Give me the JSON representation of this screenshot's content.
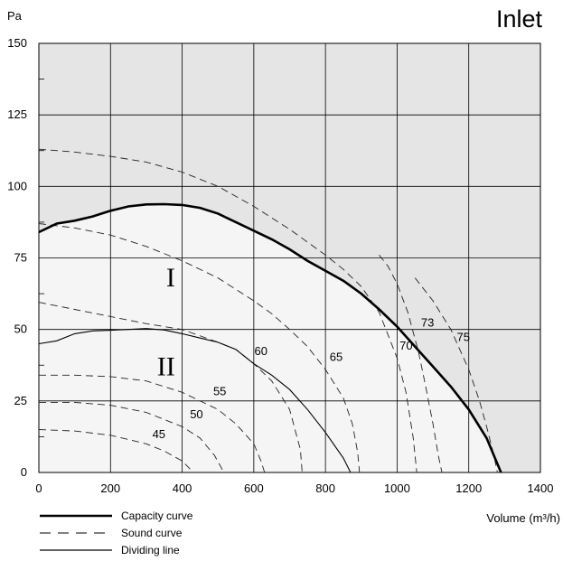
{
  "chart_data": {
    "type": "line",
    "title": "Inlet",
    "ylabel": "Pa",
    "xlabel": "Volume (m³/h)",
    "xlim": [
      0,
      1400
    ],
    "ylim": [
      0,
      150
    ],
    "x_ticks": [
      0,
      200,
      400,
      600,
      800,
      1000,
      1200,
      1400
    ],
    "y_ticks": [
      0,
      25,
      50,
      75,
      100,
      125,
      150
    ],
    "grid": true,
    "colors": {
      "background": "#ffffff",
      "above_capacity": "#e5e5e5",
      "below_capacity": "#f5f5f5",
      "line": "#000000",
      "grid": "#000000"
    },
    "capacity_curve": {
      "name": "Capacity curve",
      "x": [
        0,
        50,
        100,
        150,
        200,
        250,
        300,
        350,
        400,
        450,
        500,
        550,
        600,
        650,
        700,
        750,
        800,
        850,
        900,
        950,
        1000,
        1050,
        1100,
        1150,
        1200,
        1250,
        1290
      ],
      "y": [
        84,
        87,
        88,
        89.5,
        91.5,
        93,
        93.7,
        93.8,
        93.5,
        92.5,
        90.5,
        87.5,
        84.5,
        81.5,
        78,
        74,
        70.5,
        67,
        62.5,
        57,
        51,
        44,
        37,
        30,
        22,
        12,
        0
      ]
    },
    "dividing_line": {
      "name": "Dividing line",
      "x": [
        0,
        50,
        100,
        150,
        200,
        250,
        300,
        350,
        400,
        450,
        500,
        550,
        600,
        650,
        700,
        750,
        800,
        850,
        870
      ],
      "y": [
        45,
        46,
        48.5,
        49.5,
        49.7,
        50,
        50.3,
        49.8,
        48.5,
        47,
        45.5,
        43,
        38,
        34,
        29,
        22,
        14,
        5,
        0
      ]
    },
    "sound_curves": [
      {
        "label": "45",
        "x": [
          0,
          100,
          200,
          300,
          350,
          400,
          420,
          430
        ],
        "y": [
          15,
          14.5,
          13,
          10,
          7.5,
          4,
          1.5,
          0
        ]
      },
      {
        "label": "50",
        "x": [
          0,
          100,
          200,
          300,
          400,
          450,
          490,
          510,
          515
        ],
        "y": [
          24.5,
          24.5,
          23.5,
          21,
          16,
          12,
          6,
          1.5,
          0
        ]
      },
      {
        "label": "55",
        "x": [
          0,
          100,
          200,
          300,
          400,
          500,
          550,
          600,
          620,
          630
        ],
        "y": [
          34,
          34,
          33.5,
          32,
          28,
          22,
          17,
          10,
          4,
          0
        ]
      },
      {
        "label": "60",
        "x": [
          0,
          100,
          200,
          300,
          400,
          500,
          550,
          600,
          650,
          700,
          730,
          735
        ],
        "y": [
          59.5,
          57,
          54.5,
          52,
          50,
          45.5,
          43,
          38,
          32,
          22,
          8,
          0
        ]
      },
      {
        "label": "65",
        "x": [
          0,
          100,
          200,
          300,
          400,
          500,
          600,
          650,
          700,
          750,
          800,
          850,
          875,
          890,
          895
        ],
        "y": [
          87,
          85.5,
          83,
          79,
          74,
          68,
          60,
          55.5,
          50,
          44,
          36,
          26,
          17,
          7,
          0
        ]
      },
      {
        "label": "70",
        "x": [
          0,
          100,
          200,
          300,
          400,
          500,
          600,
          700,
          800,
          850,
          900,
          950,
          1000,
          1025,
          1045,
          1055
        ],
        "y": [
          113,
          112,
          110.5,
          108.5,
          105,
          100,
          93,
          85,
          76,
          71,
          65,
          56,
          40,
          28,
          12,
          0
        ]
      },
      {
        "label": "73",
        "x": [
          950,
          975,
          1000,
          1030,
          1060,
          1080,
          1100,
          1115,
          1125
        ],
        "y": [
          76,
          72,
          66,
          56,
          42,
          30,
          17,
          6,
          0
        ]
      },
      {
        "label": "75",
        "x": [
          1050,
          1100,
          1150,
          1200,
          1230,
          1250,
          1270,
          1280
        ],
        "y": [
          68,
          60,
          50,
          36,
          25,
          16,
          6,
          0
        ]
      }
    ],
    "region_labels": [
      "I",
      "II"
    ],
    "legend": {
      "position": "bottom-left",
      "entries": [
        {
          "label": "Capacity curve",
          "style": "thick"
        },
        {
          "label": "Sound curve",
          "style": "dashed"
        },
        {
          "label": "Dividing line",
          "style": "thin"
        }
      ]
    }
  }
}
